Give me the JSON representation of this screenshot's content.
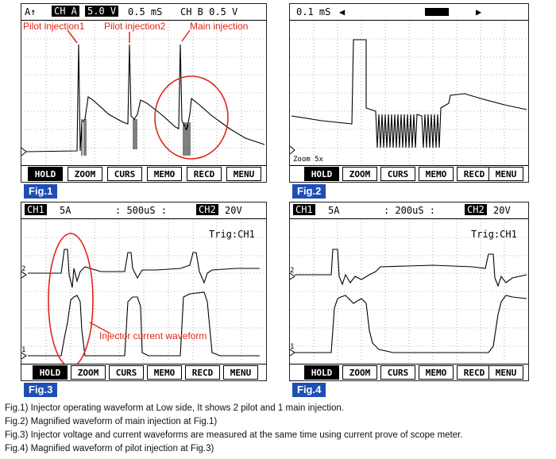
{
  "fig1": {
    "header": {
      "a": "A↑",
      "ch_a": "CH A",
      "volt_a": "5.0 V",
      "time": "0.5 mS",
      "ch_b": "CH B 0.5 V"
    },
    "annotations": {
      "pilot1": "Pilot injection1",
      "pilot2": "Pilot injection2",
      "main": "Main injection"
    },
    "tag": "Fig.1"
  },
  "fig2": {
    "header": {
      "time": "0.1 mS"
    },
    "zoom": "Zoom 5x",
    "tag": "Fig.2"
  },
  "fig3": {
    "header": {
      "ch1": "CH1",
      "ch1_val": "5A",
      "time": ": 500uS :",
      "ch2": "CH2",
      "ch2_val": "20V"
    },
    "trig": "Trig:CH1",
    "annotation": "Injector current waveform",
    "tag": "Fig.3"
  },
  "fig4": {
    "header": {
      "ch1": "CH1",
      "ch1_val": "5A",
      "time": ": 200uS :",
      "ch2": "CH2",
      "ch2_val": "20V"
    },
    "trig": "Trig:CH1",
    "tag": "Fig.4"
  },
  "buttons": [
    "HOLD",
    "ZOOM",
    "CURS",
    "MEMO",
    "RECD",
    "MENU"
  ],
  "captions": [
    "Fig.1) Injector operating waveform at Low side, It shows 2 pilot and 1 main injection.",
    "Fig.2) Magnified waveform of main injection at Fig.1)",
    "Fig.3) Injector voltage and current waveforms are measured at the same time using current prove of scope meter.",
    "Fig.4) Magnified waveform of pilot injection at Fig.3)"
  ],
  "marker_labels": {
    "ch2": "2",
    "ch1": "1"
  },
  "colors": {
    "annotation": "#e0261a",
    "tag": "#1f4fb5"
  }
}
